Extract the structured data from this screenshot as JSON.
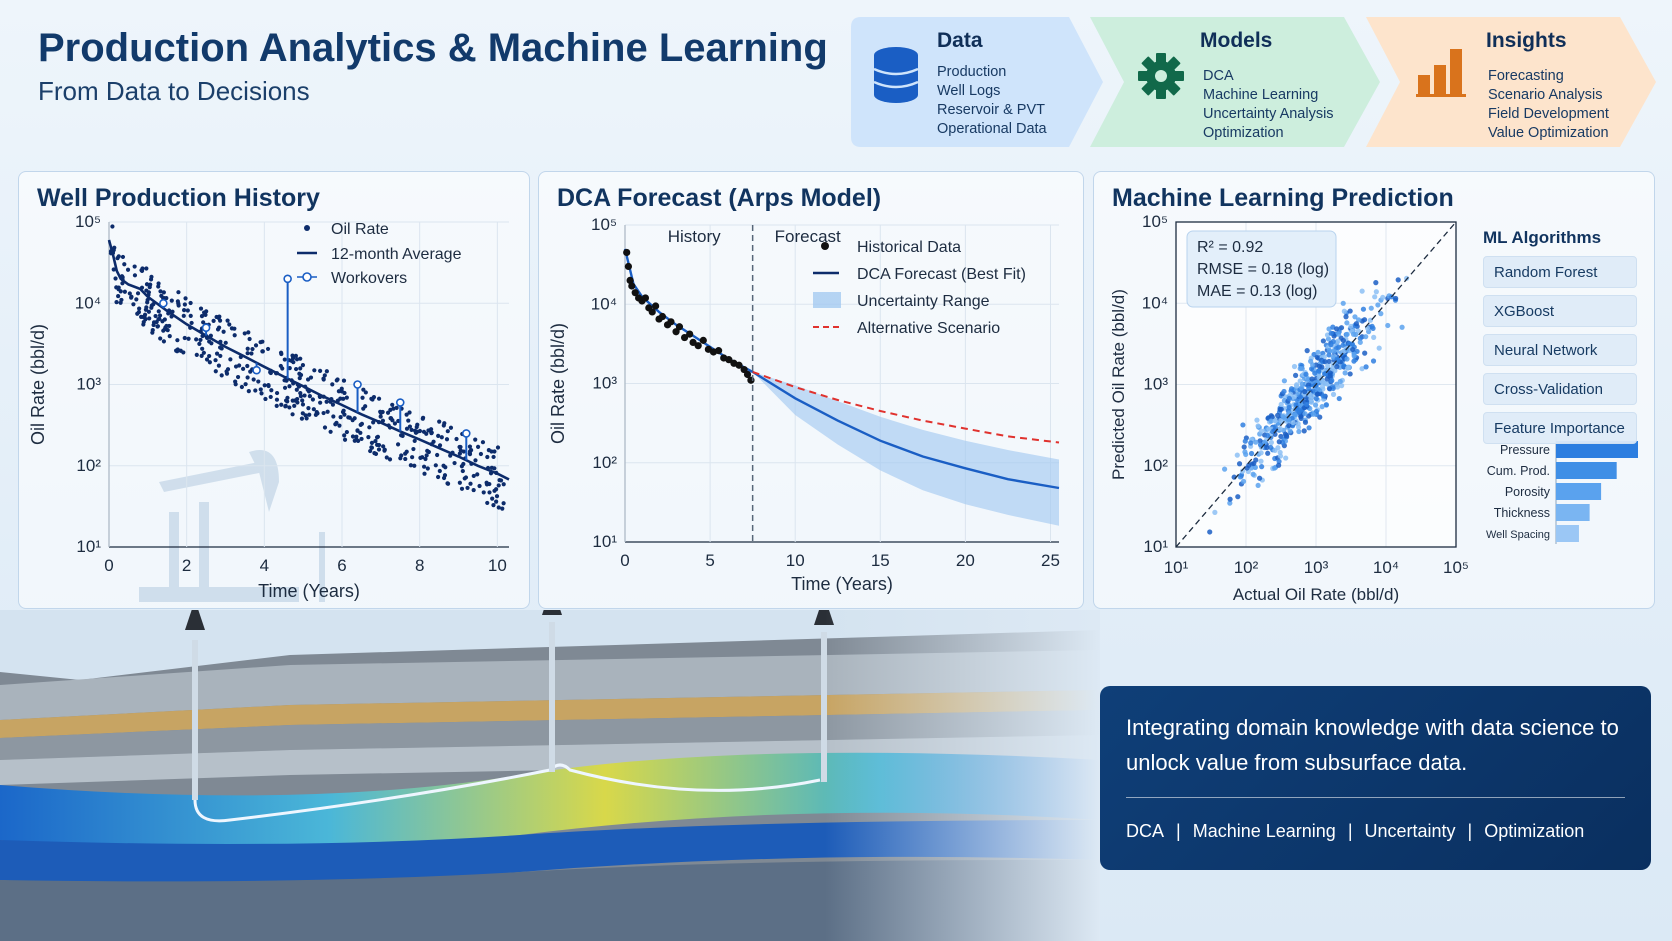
{
  "header": {
    "title": "Production Analytics & Machine Learning",
    "subtitle": "From Data to Decisions"
  },
  "workflow": [
    {
      "title": "Data",
      "icon": "database-icon",
      "color": "#cfe4fb",
      "items": [
        "Production",
        "Well Logs",
        "Reservoir & PVT",
        "Operational Data"
      ]
    },
    {
      "title": "Models",
      "icon": "gear-icon",
      "color": "#cdeedd",
      "items": [
        "DCA",
        "Machine Learning",
        "Uncertainty Analysis",
        "Optimization"
      ]
    },
    {
      "title": "Insights",
      "icon": "bar-chart-icon",
      "color": "#fde4cc",
      "items": [
        "Forecasting",
        "Scenario Analysis",
        "Field Development",
        "Value Optimization"
      ]
    }
  ],
  "panels": {
    "history": {
      "title": "Well Production History"
    },
    "dca": {
      "title": "DCA Forecast (Arps Model)"
    },
    "ml": {
      "title": "Machine Learning Prediction"
    }
  },
  "ml_algorithms": {
    "title": "ML Algorithms",
    "items": [
      "Random Forest",
      "XGBoost",
      "Neural Network",
      "Cross-Validation",
      "Feature Importance"
    ]
  },
  "message": {
    "text": "Integrating domain knowledge with data science to unlock value from subsurface data.",
    "tags": [
      "DCA",
      "Machine Learning",
      "Uncertainty",
      "Optimization"
    ]
  },
  "colors": {
    "navy": "#0d2c6b",
    "blue": "#1a5ec4",
    "red": "#e0322e",
    "band": "#9fc7f0"
  },
  "chart_data": [
    {
      "type": "scatter",
      "xlabel": "Time (Years)",
      "ylabel": "Oil Rate (bbl/d)",
      "xlim": [
        0,
        10.3
      ],
      "ylim": [
        10,
        100000
      ],
      "yscale": "log",
      "xticks": [
        "0",
        "2",
        "4",
        "6",
        "8",
        "10"
      ],
      "yticks": [
        "10¹",
        "10²",
        "10³",
        "10⁴",
        "10⁵"
      ],
      "grid": true,
      "legend": [
        "Oil Rate",
        "12-month Average",
        "Workovers"
      ],
      "legend_position": "top-right",
      "series": [
        {
          "name": "12-month Average",
          "x": [
            0,
            0.1,
            0.2,
            0.3,
            0.5,
            0.8,
            1,
            1.5,
            2,
            2.5,
            3,
            3.5,
            4,
            4.5,
            5,
            5.5,
            6,
            6.5,
            7,
            7.5,
            8,
            8.5,
            9,
            9.5,
            10,
            10.3
          ],
          "y": [
            60000,
            40000,
            25000,
            20000,
            17000,
            15000,
            12000,
            8000,
            5500,
            4000,
            2900,
            2200,
            1650,
            1250,
            950,
            720,
            560,
            430,
            340,
            265,
            210,
            165,
            130,
            100,
            80,
            68
          ]
        },
        {
          "name": "Workovers",
          "x": [
            1.4,
            2.5,
            3.8,
            4.6,
            6.4,
            7.5,
            9.2
          ],
          "y": [
            10000,
            5000,
            1500,
            20000,
            1000,
            600,
            250
          ]
        }
      ]
    },
    {
      "type": "line",
      "xlabel": "Time (Years)",
      "ylabel": "Oil Rate (bbl/d)",
      "xlim": [
        0,
        25.5
      ],
      "ylim": [
        10,
        100000
      ],
      "yscale": "log",
      "xticks": [
        "0",
        "5",
        "10",
        "15",
        "20",
        "25"
      ],
      "yticks": [
        "10¹",
        "10²",
        "10³",
        "10⁴",
        "10⁵"
      ],
      "annotations": [
        "History",
        "Forecast"
      ],
      "forecast_start": 7.5,
      "legend": [
        "Historical Data",
        "DCA Forecast (Best Fit)",
        "Uncertainty Range",
        "Alternative Scenario"
      ],
      "legend_position": "top-right",
      "series": [
        {
          "name": "Historical Data",
          "x": [
            0.1,
            0.2,
            0.3,
            0.4,
            0.6,
            0.8,
            1.0,
            1.2,
            1.4,
            1.6,
            1.8,
            2.0,
            2.2,
            2.5,
            2.7,
            3.0,
            3.2,
            3.5,
            3.8,
            4.0,
            4.3,
            4.6,
            4.9,
            5.2,
            5.5,
            5.8,
            6.1,
            6.4,
            6.7,
            7.0,
            7.2,
            7.4
          ],
          "y": [
            45000,
            30000,
            20000,
            17000,
            14000,
            12000,
            11000,
            12000,
            9000,
            8000,
            9500,
            6500,
            7000,
            5500,
            6000,
            4500,
            5200,
            3800,
            4200,
            3300,
            3000,
            3500,
            2700,
            2500,
            2600,
            2100,
            2000,
            1800,
            1700,
            1500,
            1300,
            1100
          ]
        },
        {
          "name": "DCA Forecast (Best Fit)",
          "x": [
            0,
            0.5,
            1,
            2,
            3,
            4,
            5,
            6,
            7.5,
            10,
            12.5,
            15,
            17.5,
            20,
            22.5,
            25.5
          ],
          "y": [
            50000,
            18000,
            12500,
            8000,
            5500,
            4000,
            2900,
            2100,
            1400,
            650,
            340,
            190,
            120,
            85,
            62,
            48
          ]
        },
        {
          "name": "Alternative Scenario",
          "x": [
            7.5,
            10,
            12.5,
            15,
            17.5,
            20,
            22.5,
            25.5
          ],
          "y": [
            1400,
            900,
            620,
            450,
            340,
            270,
            215,
            180
          ]
        },
        {
          "name": "Uncertainty Range",
          "x": [
            7.5,
            10,
            12.5,
            15,
            17.5,
            20,
            22.5,
            25.5
          ],
          "low": [
            1400,
            400,
            170,
            80,
            45,
            30,
            22,
            16
          ],
          "high": [
            1400,
            950,
            600,
            380,
            260,
            190,
            145,
            110
          ]
        }
      ]
    },
    {
      "type": "scatter",
      "xlabel": "Actual Oil Rate (bbl/d)",
      "ylabel": "Predicted Oil Rate (bbl/d)",
      "xlim": [
        10,
        100000
      ],
      "ylim": [
        10,
        100000
      ],
      "xscale": "log",
      "yscale": "log",
      "xticks": [
        "10¹",
        "10²",
        "10³",
        "10⁴",
        "10⁵"
      ],
      "yticks": [
        "10¹",
        "10²",
        "10³",
        "10⁴",
        "10⁵"
      ],
      "metrics": [
        "R² = 0.92",
        "RMSE = 0.18 (log)",
        "MAE = 0.13 (log)"
      ],
      "reference_line": "y = x"
    },
    {
      "type": "bar",
      "orientation": "horizontal",
      "categories": [
        "Pressure",
        "Cum. Prod.",
        "Porosity",
        "Thickness",
        "Well Spacing"
      ],
      "values": [
        1.0,
        0.74,
        0.55,
        0.41,
        0.28
      ]
    }
  ]
}
